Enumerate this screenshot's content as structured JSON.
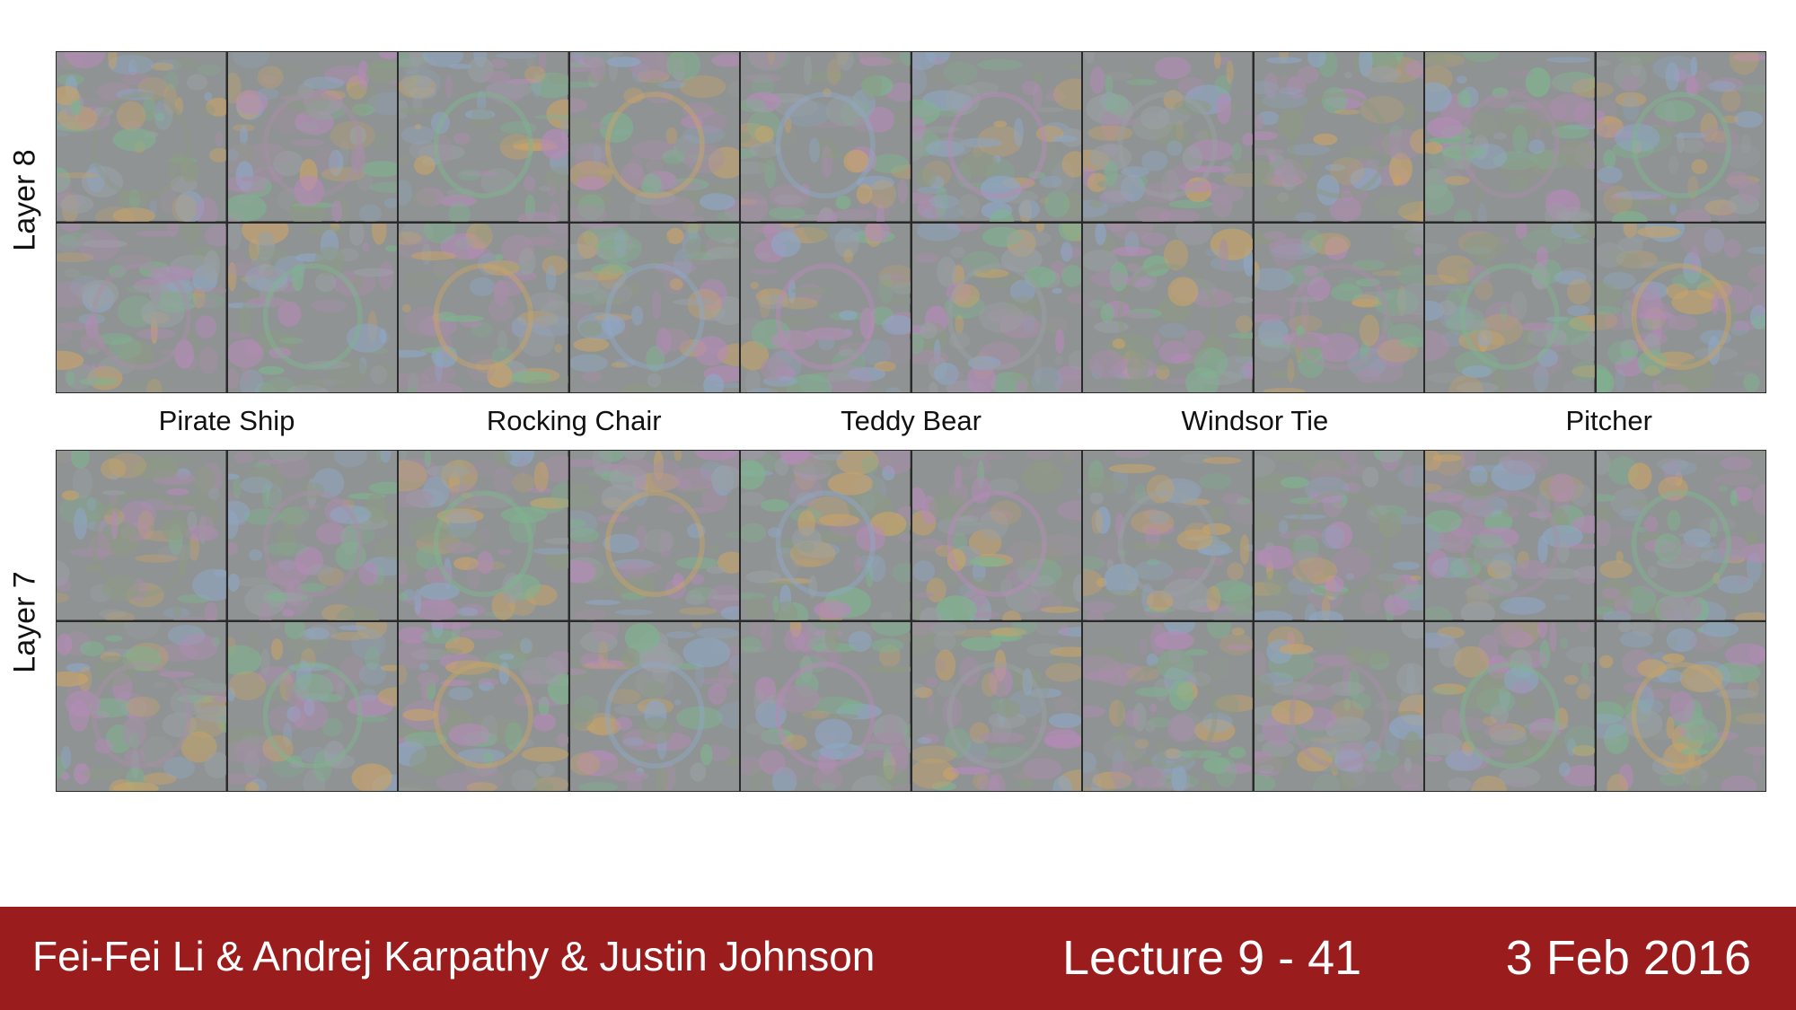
{
  "rows": [
    {
      "label": "Layer 8"
    },
    {
      "label": "Layer 7"
    }
  ],
  "classes": [
    "Pirate Ship",
    "Rocking Chair",
    "Teddy Bear",
    "Windsor Tie",
    "Pitcher"
  ],
  "palette": [
    "#8e9a86",
    "#a58fa6",
    "#7fb38f",
    "#c7a36a",
    "#8fa7c4",
    "#b58bb8",
    "#9aa0a4"
  ],
  "footer": {
    "authors": "Fei-Fei Li & Andrej Karpathy & Justin Johnson",
    "lecture": "Lecture 9 - 41",
    "date": "3 Feb 2016"
  }
}
